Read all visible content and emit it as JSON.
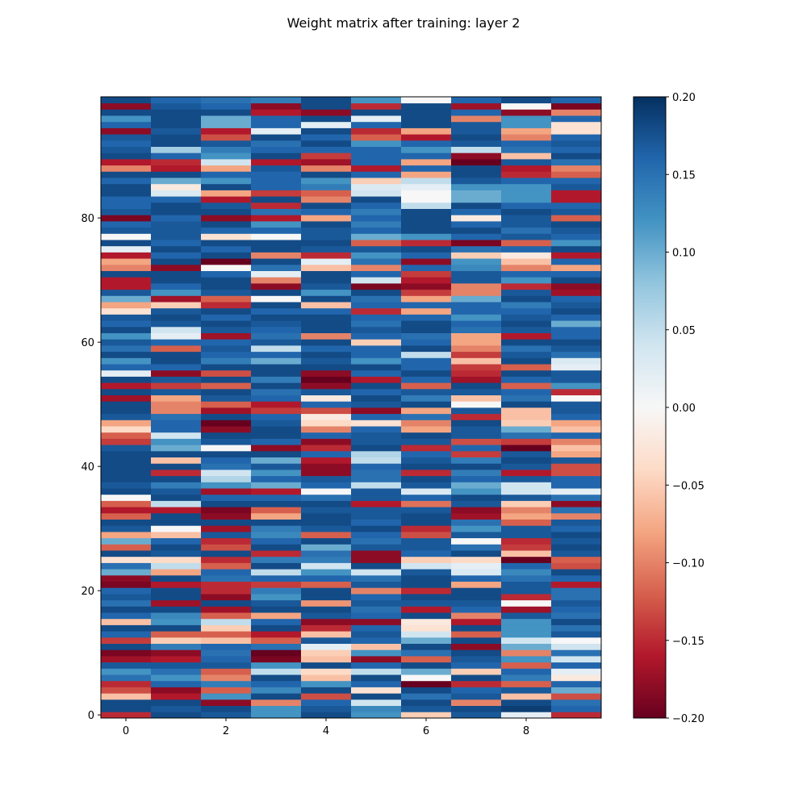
{
  "chart_data": {
    "type": "heatmap",
    "title": "Weight matrix after training: layer 2",
    "xlabel": "",
    "ylabel": "",
    "n_cols": 10,
    "n_rows": 100,
    "x_ticks": [
      0,
      2,
      4,
      6,
      8
    ],
    "x_tick_labels": [
      "0",
      "2",
      "4",
      "6",
      "8"
    ],
    "y_ticks": [
      0,
      20,
      40,
      60,
      80
    ],
    "y_tick_labels": [
      "0",
      "20",
      "40",
      "60",
      "80"
    ],
    "xlim": [
      -0.5,
      9.5
    ],
    "ylim": [
      -0.5,
      99.5
    ],
    "origin": "lower",
    "colormap": "RdBu",
    "vmin": -0.2,
    "vmax": 0.2,
    "colorbar": {
      "ticks": [
        0.2,
        0.15,
        0.1,
        0.05,
        0.0,
        -0.05,
        -0.1,
        -0.15,
        -0.2
      ],
      "tick_labels": [
        "0.20",
        "0.15",
        "0.10",
        "0.05",
        "0.00",
        "−0.05",
        "−0.10",
        "−0.15",
        "−0.20"
      ]
    },
    "grid": false,
    "values": [
      [
        -0.15,
        0.18,
        0.17,
        0.12,
        0.18,
        0.12,
        -0.05,
        0.17,
        0.02,
        -0.15
      ],
      [
        0.18,
        0.17,
        0.18,
        0.12,
        0.17,
        0.13,
        0.17,
        0.18,
        0.19,
        0.16
      ],
      [
        0.18,
        0.18,
        -0.18,
        -0.1,
        0.16,
        0.04,
        0.18,
        -0.1,
        0.18,
        0.15
      ],
      [
        -0.06,
        -0.16,
        0.12,
        0.18,
        -0.13,
        0.18,
        0.15,
        0.17,
        -0.06,
        -0.13
      ],
      [
        -0.13,
        -0.18,
        -0.12,
        0.13,
        0.18,
        -0.03,
        0.18,
        0.16,
        0.17,
        0.1
      ],
      [
        -0.15,
        0.16,
        0.14,
        0.16,
        0.12,
        0.16,
        -0.2,
        -0.15,
        -0.12,
        0.16
      ],
      [
        0.15,
        0.12,
        -0.1,
        0.18,
        -0.06,
        0.18,
        0.0,
        0.18,
        0.14,
        -0.02
      ],
      [
        0.12,
        0.15,
        -0.12,
        0.05,
        -0.04,
        0.05,
        0.1,
        -0.05,
        0.16,
        0.02
      ],
      [
        0.17,
        0.17,
        0.17,
        0.12,
        0.18,
        0.16,
        0.18,
        0.16,
        -0.12,
        0.16
      ],
      [
        -0.17,
        -0.16,
        0.16,
        -0.19,
        -0.06,
        -0.18,
        -0.12,
        0.17,
        0.12,
        0.04
      ],
      [
        -0.19,
        -0.18,
        0.15,
        -0.2,
        -0.05,
        0.12,
        0.15,
        0.18,
        -0.1,
        0.15
      ],
      [
        0.18,
        0.14,
        0.16,
        0.15,
        0.02,
        -0.06,
        0.18,
        -0.18,
        0.1,
        0.04
      ],
      [
        -0.14,
        -0.05,
        -0.06,
        -0.12,
        0.17,
        0.16,
        0.1,
        0.18,
        0.04,
        0.0
      ],
      [
        0.16,
        -0.12,
        -0.12,
        -0.16,
        -0.06,
        0.17,
        0.04,
        -0.12,
        0.12,
        0.17
      ],
      [
        0.18,
        0.18,
        -0.05,
        0.18,
        -0.15,
        0.16,
        -0.03,
        0.18,
        0.12,
        0.15
      ],
      [
        -0.06,
        0.12,
        0.05,
        0.16,
        -0.18,
        -0.18,
        -0.02,
        -0.16,
        0.12,
        0.18
      ],
      [
        0.16,
        0.13,
        -0.12,
        -0.08,
        0.17,
        0.16,
        0.18,
        -0.1,
        0.17,
        0.15
      ],
      [
        0.18,
        0.18,
        -0.17,
        0.18,
        0.18,
        0.15,
        -0.16,
        0.16,
        -0.17,
        0.16
      ],
      [
        0.15,
        -0.17,
        0.18,
        0.17,
        -0.09,
        0.17,
        0.17,
        0.17,
        0.0,
        0.17
      ],
      [
        0.17,
        0.18,
        -0.18,
        0.12,
        0.18,
        0.16,
        0.18,
        0.18,
        -0.15,
        0.15
      ],
      [
        0.16,
        0.18,
        -0.15,
        0.14,
        0.18,
        -0.1,
        -0.15,
        0.18,
        0.17,
        0.15
      ],
      [
        -0.19,
        -0.16,
        -0.15,
        -0.14,
        -0.12,
        0.17,
        0.18,
        -0.08,
        0.17,
        -0.16
      ],
      [
        -0.18,
        0.18,
        0.15,
        0.16,
        0.16,
        0.15,
        0.18,
        0.16,
        0.15,
        0.16
      ],
      [
        0.1,
        -0.08,
        0.16,
        0.05,
        0.12,
        0.04,
        0.17,
        0.03,
        0.13,
        0.18
      ],
      [
        0.15,
        0.05,
        -0.12,
        0.18,
        0.04,
        0.18,
        0.04,
        0.02,
        0.16,
        -0.13
      ],
      [
        -0.03,
        -0.04,
        -0.15,
        0.14,
        0.14,
        -0.18,
        -0.05,
        -0.04,
        -0.2,
        -0.12
      ],
      [
        0.18,
        0.17,
        0.18,
        -0.15,
        0.15,
        -0.18,
        0.16,
        0.18,
        -0.06,
        0.17
      ],
      [
        -0.12,
        0.18,
        -0.13,
        0.18,
        0.1,
        0.17,
        0.17,
        0.15,
        -0.14,
        0.18
      ],
      [
        0.1,
        0.16,
        -0.15,
        0.16,
        0.18,
        0.15,
        0.17,
        0.0,
        -0.15,
        0.17
      ],
      [
        -0.08,
        -0.06,
        0.17,
        0.13,
        -0.12,
        0.16,
        -0.13,
        0.17,
        0.17,
        0.18
      ],
      [
        0.17,
        0.0,
        -0.17,
        0.14,
        0.17,
        0.18,
        -0.15,
        0.12,
        0.17,
        0.16
      ],
      [
        0.18,
        0.18,
        0.18,
        0.18,
        0.18,
        0.16,
        0.18,
        0.15,
        -0.12,
        0.17
      ],
      [
        -0.12,
        0.18,
        -0.18,
        -0.08,
        0.18,
        0.17,
        0.18,
        -0.17,
        -0.08,
        -0.1
      ],
      [
        -0.16,
        -0.16,
        -0.19,
        -0.12,
        0.17,
        0.17,
        0.17,
        -0.18,
        -0.1,
        0.15
      ],
      [
        -0.12,
        0.05,
        0.18,
        0.18,
        0.18,
        -0.16,
        -0.11,
        0.17,
        -0.05,
        -0.18
      ],
      [
        0.0,
        0.18,
        0.16,
        0.16,
        0.15,
        0.17,
        0.16,
        0.18,
        0.17,
        0.15
      ],
      [
        0.18,
        0.17,
        -0.17,
        -0.16,
        0.0,
        0.17,
        0.03,
        0.12,
        0.04,
        0.02
      ],
      [
        0.17,
        0.14,
        0.12,
        0.1,
        0.16,
        0.05,
        0.17,
        0.1,
        0.04,
        0.16
      ],
      [
        0.18,
        0.18,
        0.06,
        0.16,
        0.17,
        0.15,
        0.18,
        0.16,
        0.17,
        0.16
      ],
      [
        0.18,
        -0.15,
        0.04,
        0.12,
        -0.18,
        0.15,
        -0.15,
        0.14,
        -0.16,
        -0.13
      ],
      [
        0.18,
        0.18,
        0.15,
        0.17,
        -0.18,
        0.16,
        0.18,
        0.18,
        0.17,
        -0.13
      ],
      [
        0.18,
        -0.06,
        0.16,
        0.1,
        -0.16,
        0.05,
        0.17,
        0.14,
        0.18,
        0.17
      ],
      [
        0.18,
        0.18,
        0.18,
        0.18,
        0.16,
        0.06,
        0.16,
        -0.14,
        0.17,
        -0.08
      ],
      [
        0.17,
        0.1,
        0.0,
        -0.18,
        -0.15,
        0.18,
        -0.15,
        0.16,
        -0.2,
        -0.06
      ],
      [
        -0.14,
        0.12,
        0.17,
        0.16,
        -0.18,
        0.17,
        0.17,
        -0.13,
        -0.14,
        -0.1
      ],
      [
        -0.12,
        0.04,
        0.18,
        0.18,
        0.16,
        0.17,
        0.18,
        0.17,
        0.15,
        0.16
      ],
      [
        -0.04,
        0.16,
        -0.18,
        0.18,
        -0.1,
        0.16,
        -0.08,
        0.17,
        0.1,
        -0.06
      ],
      [
        -0.08,
        0.16,
        -0.2,
        0.17,
        -0.04,
        -0.03,
        -0.1,
        0.18,
        -0.05,
        -0.08
      ],
      [
        0.17,
        0.15,
        0.18,
        0.16,
        -0.02,
        0.16,
        0.15,
        -0.15,
        -0.06,
        0.16
      ],
      [
        0.18,
        -0.1,
        -0.17,
        -0.14,
        -0.13,
        -0.18,
        -0.08,
        0.17,
        -0.06,
        0.17
      ],
      [
        0.18,
        -0.1,
        -0.12,
        -0.16,
        0.16,
        0.17,
        0.18,
        0.0,
        0.18,
        0.17
      ],
      [
        -0.17,
        -0.08,
        0.17,
        0.16,
        -0.02,
        0.18,
        0.14,
        -0.06,
        0.15,
        0.0
      ],
      [
        0.18,
        0.17,
        0.18,
        0.15,
        0.17,
        0.16,
        0.17,
        0.17,
        0.16,
        -0.15
      ],
      [
        -0.16,
        -0.14,
        -0.12,
        0.18,
        -0.18,
        0.18,
        -0.12,
        0.18,
        -0.12,
        0.12
      ],
      [
        0.18,
        0.17,
        0.18,
        0.14,
        -0.2,
        -0.16,
        0.16,
        -0.17,
        0.16,
        0.17
      ],
      [
        0.02,
        -0.18,
        -0.13,
        0.18,
        -0.18,
        0.16,
        0.18,
        -0.15,
        0.18,
        0.17
      ],
      [
        0.16,
        0.16,
        0.18,
        0.18,
        0.18,
        0.18,
        0.16,
        -0.14,
        -0.12,
        0.02
      ],
      [
        0.12,
        0.18,
        0.14,
        0.1,
        0.17,
        0.12,
        0.16,
        -0.06,
        0.18,
        0.03
      ],
      [
        0.18,
        0.18,
        0.16,
        0.16,
        0.18,
        0.16,
        0.05,
        -0.14,
        0.17,
        0.15
      ],
      [
        0.15,
        -0.12,
        0.17,
        0.05,
        0.16,
        0.16,
        0.18,
        -0.1,
        0.15,
        0.17
      ],
      [
        0.17,
        0.16,
        0.16,
        0.17,
        0.18,
        -0.05,
        0.16,
        -0.08,
        0.18,
        0.18
      ],
      [
        0.12,
        0.02,
        -0.17,
        0.15,
        -0.1,
        0.16,
        0.15,
        -0.08,
        -0.16,
        0.16
      ],
      [
        0.18,
        0.04,
        0.17,
        0.16,
        0.18,
        0.17,
        0.18,
        0.15,
        0.17,
        0.16
      ],
      [
        0.16,
        0.17,
        0.18,
        0.17,
        0.18,
        0.15,
        0.18,
        0.16,
        0.18,
        0.1
      ],
      [
        0.17,
        0.18,
        0.16,
        0.18,
        0.18,
        0.16,
        0.16,
        0.12,
        0.17,
        0.16
      ],
      [
        -0.03,
        0.17,
        0.18,
        0.16,
        0.16,
        -0.15,
        -0.08,
        0.16,
        0.16,
        0.18
      ],
      [
        -0.08,
        -0.05,
        -0.15,
        0.18,
        -0.06,
        0.16,
        0.16,
        0.16,
        0.14,
        0.17
      ],
      [
        0.1,
        -0.17,
        -0.12,
        0.0,
        0.18,
        0.15,
        -0.08,
        0.1,
        0.18,
        0.16
      ],
      [
        0.17,
        0.12,
        0.17,
        0.18,
        0.12,
        0.18,
        -0.14,
        -0.1,
        0.17,
        -0.17
      ],
      [
        -0.16,
        0.16,
        0.18,
        -0.18,
        0.17,
        -0.19,
        -0.18,
        -0.1,
        -0.15,
        -0.18
      ],
      [
        -0.16,
        0.18,
        0.18,
        -0.1,
        0.18,
        0.04,
        -0.16,
        0.17,
        0.12,
        0.18
      ],
      [
        0.18,
        0.18,
        0.16,
        0.02,
        0.18,
        0.16,
        -0.14,
        0.17,
        0.16,
        0.16
      ],
      [
        -0.1,
        -0.18,
        0.0,
        0.15,
        -0.06,
        -0.1,
        0.16,
        0.13,
        -0.1,
        -0.08
      ],
      [
        -0.08,
        0.18,
        -0.2,
        0.18,
        0.02,
        0.15,
        -0.18,
        0.12,
        -0.06,
        0.16
      ],
      [
        -0.16,
        0.16,
        0.18,
        -0.1,
        -0.15,
        0.12,
        0.16,
        -0.05,
        -0.02,
        -0.16
      ],
      [
        0.02,
        0.18,
        0.16,
        0.18,
        0.17,
        0.17,
        0.18,
        0.15,
        0.16,
        0.18
      ],
      [
        0.18,
        0.16,
        0.18,
        0.18,
        0.18,
        -0.12,
        -0.15,
        -0.19,
        -0.12,
        0.12
      ],
      [
        0.0,
        0.17,
        -0.03,
        0.0,
        0.17,
        0.1,
        0.12,
        0.16,
        0.17,
        0.16
      ],
      [
        0.17,
        0.17,
        0.16,
        0.16,
        0.17,
        0.16,
        0.18,
        0.18,
        0.15,
        0.17
      ],
      [
        0.16,
        0.17,
        0.18,
        0.12,
        0.18,
        0.14,
        0.18,
        0.16,
        0.17,
        0.18
      ],
      [
        -0.19,
        0.16,
        -0.18,
        -0.16,
        -0.08,
        0.16,
        0.18,
        -0.02,
        0.17,
        -0.12
      ],
      [
        0.17,
        0.18,
        0.18,
        0.15,
        0.16,
        0.14,
        0.18,
        0.16,
        0.18,
        0.17
      ],
      [
        0.16,
        0.18,
        0.17,
        -0.15,
        0.18,
        0.16,
        0.05,
        0.18,
        0.16,
        0.16
      ],
      [
        0.16,
        0.16,
        -0.16,
        0.18,
        -0.1,
        0.18,
        0.0,
        0.1,
        0.12,
        -0.16
      ],
      [
        0.18,
        0.03,
        -0.08,
        -0.14,
        -0.12,
        0.04,
        0.0,
        0.1,
        0.12,
        -0.16
      ],
      [
        0.18,
        -0.02,
        0.18,
        0.16,
        0.14,
        0.03,
        0.02,
        0.12,
        0.12,
        0.17
      ],
      [
        0.16,
        0.1,
        0.12,
        0.16,
        0.12,
        -0.05,
        0.05,
        0.17,
        0.16,
        0.16
      ],
      [
        0.18,
        0.18,
        0.16,
        0.16,
        0.18,
        0.16,
        -0.08,
        0.18,
        -0.15,
        -0.12
      ],
      [
        -0.1,
        -0.16,
        -0.08,
        0.17,
        -0.1,
        -0.16,
        0.16,
        0.18,
        -0.16,
        -0.1
      ],
      [
        -0.16,
        -0.15,
        0.04,
        -0.16,
        -0.17,
        0.16,
        -0.08,
        -0.2,
        0.17,
        0.15
      ],
      [
        0.18,
        0.16,
        0.12,
        0.18,
        -0.14,
        0.16,
        0.16,
        -0.18,
        -0.06,
        0.18
      ],
      [
        0.17,
        0.07,
        0.14,
        0.16,
        0.16,
        0.16,
        0.12,
        0.05,
        0.15,
        0.16
      ],
      [
        0.16,
        0.18,
        0.17,
        0.15,
        0.18,
        0.12,
        0.16,
        0.17,
        0.16,
        0.17
      ],
      [
        0.17,
        0.18,
        -0.13,
        0.18,
        0.16,
        -0.12,
        -0.16,
        0.18,
        -0.1,
        0.16
      ],
      [
        -0.18,
        0.17,
        -0.16,
        0.02,
        0.18,
        -0.15,
        -0.08,
        0.17,
        -0.08,
        -0.03
      ],
      [
        0.16,
        0.18,
        0.1,
        0.16,
        0.02,
        0.16,
        0.18,
        0.17,
        0.12,
        -0.03
      ],
      [
        0.12,
        0.18,
        0.1,
        0.16,
        0.18,
        0.02,
        0.18,
        -0.1,
        0.12,
        0.16
      ],
      [
        0.18,
        0.18,
        0.18,
        -0.16,
        -0.18,
        0.18,
        0.18,
        0.16,
        -0.18,
        -0.1
      ],
      [
        -0.18,
        0.17,
        0.16,
        -0.18,
        0.18,
        -0.15,
        0.18,
        -0.17,
        0.0,
        -0.19
      ],
      [
        0.18,
        0.16,
        0.15,
        0.14,
        0.18,
        0.12,
        0.0,
        0.16,
        0.18,
        0.16
      ]
    ]
  }
}
